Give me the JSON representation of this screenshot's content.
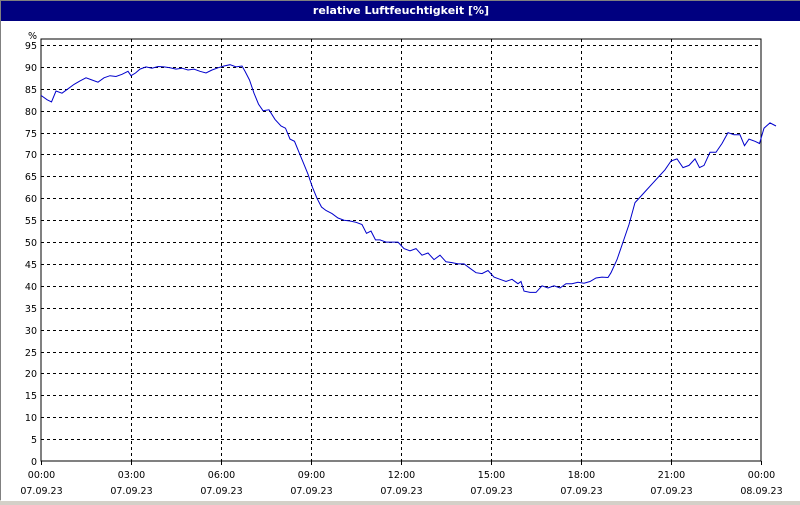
{
  "window": {
    "title": "relative Luftfeuchtigkeit [%]"
  },
  "colors": {
    "title_bar": "#000080",
    "title_text": "#ffffff",
    "line": "#0000cc",
    "grid": "#000000",
    "background": "#ffffff"
  },
  "chart_data": {
    "type": "line",
    "title": "relative Luftfeuchtigkeit [%]",
    "ylabel": "%",
    "xlabel": "",
    "ylim": [
      0,
      95
    ],
    "yticks": [
      0,
      5,
      10,
      15,
      20,
      25,
      30,
      35,
      40,
      45,
      50,
      55,
      60,
      65,
      70,
      75,
      80,
      85,
      90,
      95
    ],
    "xlim_hours": [
      0,
      24
    ],
    "grid": true,
    "grid_style": "dashed",
    "xticks": [
      {
        "hour": 0,
        "time": "00:00",
        "date": "07.09.23"
      },
      {
        "hour": 3,
        "time": "03:00",
        "date": "07.09.23"
      },
      {
        "hour": 6,
        "time": "06:00",
        "date": "07.09.23"
      },
      {
        "hour": 9,
        "time": "09:00",
        "date": "07.09.23"
      },
      {
        "hour": 12,
        "time": "12:00",
        "date": "07.09.23"
      },
      {
        "hour": 15,
        "time": "15:00",
        "date": "07.09.23"
      },
      {
        "hour": 18,
        "time": "18:00",
        "date": "07.09.23"
      },
      {
        "hour": 21,
        "time": "21:00",
        "date": "07.09.23"
      },
      {
        "hour": 24,
        "time": "00:00",
        "date": "08.09.23"
      }
    ],
    "series": [
      {
        "color": "#0000cc",
        "points": [
          [
            0.0,
            83.5
          ],
          [
            0.2,
            82.5
          ],
          [
            0.35,
            82.0
          ],
          [
            0.5,
            84.5
          ],
          [
            0.7,
            84.0
          ],
          [
            0.9,
            85.0
          ],
          [
            1.1,
            86.0
          ],
          [
            1.3,
            86.8
          ],
          [
            1.5,
            87.5
          ],
          [
            1.7,
            87.0
          ],
          [
            1.9,
            86.5
          ],
          [
            2.1,
            87.5
          ],
          [
            2.3,
            88.0
          ],
          [
            2.5,
            87.8
          ],
          [
            2.7,
            88.3
          ],
          [
            2.9,
            89.0
          ],
          [
            3.0,
            88.0
          ],
          [
            3.15,
            88.6
          ],
          [
            3.3,
            89.5
          ],
          [
            3.5,
            90.0
          ],
          [
            3.7,
            89.7
          ],
          [
            3.9,
            90.1
          ],
          [
            4.1,
            90.0
          ],
          [
            4.3,
            89.8
          ],
          [
            4.5,
            89.5
          ],
          [
            4.7,
            89.7
          ],
          [
            4.9,
            89.3
          ],
          [
            5.1,
            89.5
          ],
          [
            5.3,
            89.0
          ],
          [
            5.5,
            88.6
          ],
          [
            5.7,
            89.3
          ],
          [
            5.9,
            89.8
          ],
          [
            6.1,
            90.2
          ],
          [
            6.3,
            90.5
          ],
          [
            6.5,
            90.0
          ],
          [
            6.7,
            90.2
          ],
          [
            6.8,
            89.0
          ],
          [
            6.95,
            87.0
          ],
          [
            7.1,
            84.0
          ],
          [
            7.25,
            81.5
          ],
          [
            7.4,
            80.0
          ],
          [
            7.6,
            80.2
          ],
          [
            7.8,
            78.0
          ],
          [
            8.0,
            76.5
          ],
          [
            8.15,
            76.0
          ],
          [
            8.3,
            73.5
          ],
          [
            8.45,
            73.0
          ],
          [
            8.6,
            70.5
          ],
          [
            8.75,
            68.0
          ],
          [
            8.9,
            65.5
          ],
          [
            9.05,
            62.5
          ],
          [
            9.2,
            60.0
          ],
          [
            9.35,
            58.0
          ],
          [
            9.5,
            57.2
          ],
          [
            9.7,
            56.5
          ],
          [
            9.9,
            55.5
          ],
          [
            10.1,
            55.0
          ],
          [
            10.3,
            54.8
          ],
          [
            10.5,
            54.5
          ],
          [
            10.7,
            54.0
          ],
          [
            10.85,
            52.0
          ],
          [
            11.0,
            52.5
          ],
          [
            11.15,
            50.5
          ],
          [
            11.3,
            50.5
          ],
          [
            11.5,
            50.0
          ],
          [
            11.7,
            50.0
          ],
          [
            11.9,
            50.0
          ],
          [
            12.1,
            48.5
          ],
          [
            12.3,
            48.0
          ],
          [
            12.5,
            48.5
          ],
          [
            12.7,
            47.0
          ],
          [
            12.9,
            47.5
          ],
          [
            13.1,
            46.0
          ],
          [
            13.3,
            47.0
          ],
          [
            13.5,
            45.5
          ],
          [
            13.7,
            45.3
          ],
          [
            13.9,
            45.0
          ],
          [
            14.1,
            45.0
          ],
          [
            14.3,
            44.0
          ],
          [
            14.5,
            43.0
          ],
          [
            14.7,
            42.8
          ],
          [
            14.9,
            43.5
          ],
          [
            15.1,
            42.0
          ],
          [
            15.3,
            41.5
          ],
          [
            15.5,
            41.0
          ],
          [
            15.7,
            41.5
          ],
          [
            15.9,
            40.5
          ],
          [
            16.0,
            41.0
          ],
          [
            16.1,
            38.8
          ],
          [
            16.3,
            38.5
          ],
          [
            16.5,
            38.5
          ],
          [
            16.7,
            40.0
          ],
          [
            16.9,
            39.5
          ],
          [
            17.1,
            40.0
          ],
          [
            17.3,
            39.5
          ],
          [
            17.5,
            40.5
          ],
          [
            17.7,
            40.5
          ],
          [
            17.9,
            40.8
          ],
          [
            18.1,
            40.6
          ],
          [
            18.3,
            41.0
          ],
          [
            18.5,
            41.8
          ],
          [
            18.7,
            42.0
          ],
          [
            18.9,
            41.9
          ],
          [
            19.0,
            43.0
          ],
          [
            19.2,
            46.0
          ],
          [
            19.4,
            50.0
          ],
          [
            19.6,
            54.0
          ],
          [
            19.8,
            59.0
          ],
          [
            20.0,
            60.5
          ],
          [
            20.2,
            62.0
          ],
          [
            20.4,
            63.5
          ],
          [
            20.6,
            65.0
          ],
          [
            20.8,
            66.5
          ],
          [
            21.0,
            68.5
          ],
          [
            21.2,
            69.0
          ],
          [
            21.4,
            67.0
          ],
          [
            21.6,
            67.5
          ],
          [
            21.8,
            69.0
          ],
          [
            21.95,
            67.0
          ],
          [
            22.1,
            67.5
          ],
          [
            22.3,
            70.5
          ],
          [
            22.5,
            70.5
          ],
          [
            22.7,
            72.5
          ],
          [
            22.9,
            75.0
          ],
          [
            23.1,
            74.5
          ],
          [
            23.3,
            74.5
          ],
          [
            23.45,
            72.0
          ],
          [
            23.6,
            73.5
          ],
          [
            23.8,
            73.0
          ],
          [
            23.95,
            72.5
          ],
          [
            24.1,
            76.0
          ],
          [
            24.3,
            77.2
          ],
          [
            24.5,
            76.5
          ]
        ]
      }
    ]
  }
}
